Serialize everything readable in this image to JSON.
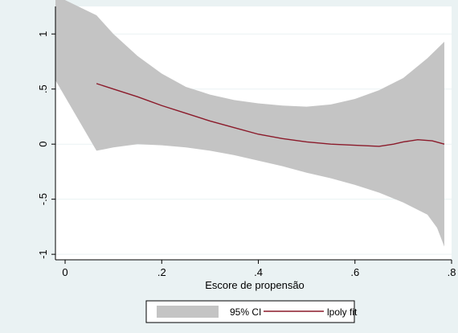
{
  "chart_data": {
    "type": "line",
    "title": "",
    "xlabel": "Escore de propensão",
    "ylabel": "",
    "xlim": [
      -0.02,
      0.8
    ],
    "ylim": [
      -1.05,
      1.25
    ],
    "x_ticks": [
      0,
      0.2,
      0.4,
      0.6,
      0.8
    ],
    "x_tick_labels": [
      "0",
      ".2",
      ".4",
      ".6",
      ".8"
    ],
    "y_ticks": [
      -1,
      -0.5,
      0,
      0.5,
      1
    ],
    "y_tick_labels": [
      "-1",
      "-.5",
      "0",
      ".5",
      "1"
    ],
    "grid": "horizontal",
    "legend_position": "bottom",
    "colors": {
      "band": "#c4c4c4",
      "line": "#8b1a2a",
      "plot_background": "#ffffff",
      "outer_background": "#eaf2f3"
    },
    "series": [
      {
        "name": "95% CI",
        "kind": "band",
        "upper": [
          [
            -0.02,
            1.35
          ],
          [
            0.065,
            1.17
          ],
          [
            0.1,
            1.0
          ],
          [
            0.15,
            0.8
          ],
          [
            0.2,
            0.64
          ],
          [
            0.25,
            0.52
          ],
          [
            0.3,
            0.45
          ],
          [
            0.35,
            0.4
          ],
          [
            0.4,
            0.37
          ],
          [
            0.45,
            0.35
          ],
          [
            0.5,
            0.34
          ],
          [
            0.55,
            0.36
          ],
          [
            0.6,
            0.41
          ],
          [
            0.65,
            0.49
          ],
          [
            0.7,
            0.6
          ],
          [
            0.75,
            0.78
          ],
          [
            0.785,
            0.93
          ]
        ],
        "lower": [
          [
            -0.02,
            0.58
          ],
          [
            0.065,
            -0.06
          ],
          [
            0.1,
            -0.03
          ],
          [
            0.15,
            0.0
          ],
          [
            0.2,
            -0.01
          ],
          [
            0.25,
            -0.03
          ],
          [
            0.3,
            -0.06
          ],
          [
            0.35,
            -0.1
          ],
          [
            0.4,
            -0.15
          ],
          [
            0.45,
            -0.2
          ],
          [
            0.5,
            -0.26
          ],
          [
            0.55,
            -0.31
          ],
          [
            0.6,
            -0.37
          ],
          [
            0.65,
            -0.44
          ],
          [
            0.7,
            -0.53
          ],
          [
            0.75,
            -0.64
          ],
          [
            0.77,
            -0.76
          ],
          [
            0.785,
            -0.93
          ]
        ]
      },
      {
        "name": "lpoly fit",
        "kind": "line",
        "points": [
          [
            0.065,
            0.55
          ],
          [
            0.1,
            0.5
          ],
          [
            0.15,
            0.43
          ],
          [
            0.2,
            0.35
          ],
          [
            0.25,
            0.28
          ],
          [
            0.3,
            0.21
          ],
          [
            0.35,
            0.15
          ],
          [
            0.4,
            0.09
          ],
          [
            0.45,
            0.05
          ],
          [
            0.5,
            0.02
          ],
          [
            0.55,
            0.0
          ],
          [
            0.6,
            -0.01
          ],
          [
            0.65,
            -0.02
          ],
          [
            0.68,
            0.0
          ],
          [
            0.7,
            0.02
          ],
          [
            0.73,
            0.04
          ],
          [
            0.76,
            0.03
          ],
          [
            0.785,
            0.0
          ]
        ]
      }
    ]
  }
}
